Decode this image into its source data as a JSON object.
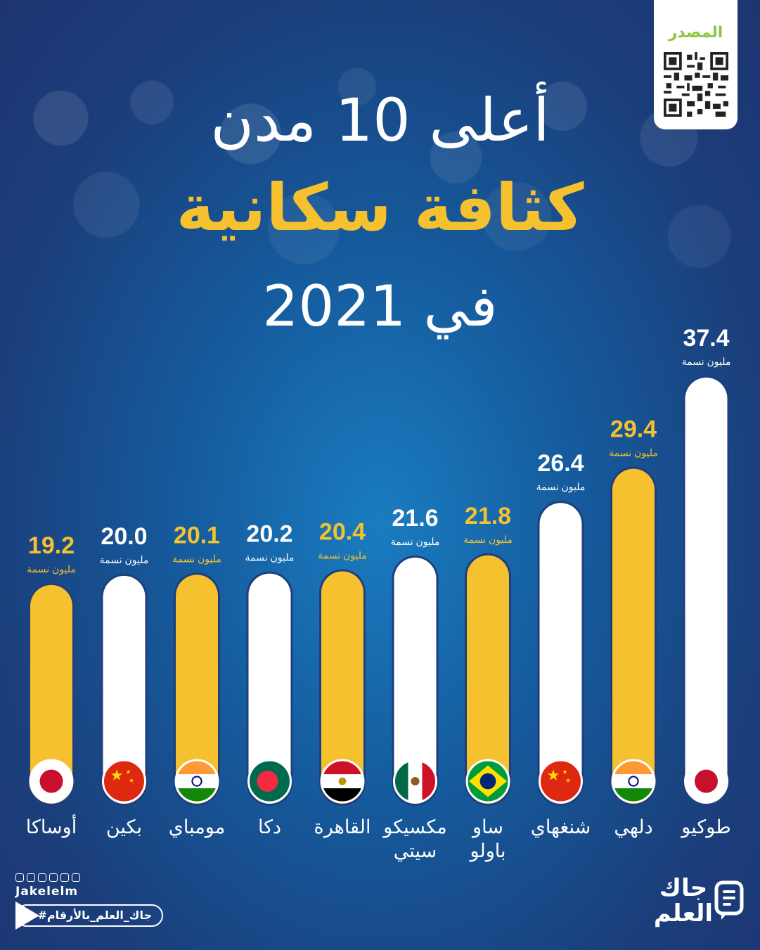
{
  "source": {
    "label": "المصدر"
  },
  "title": {
    "line1": "أعلى 10 مدن",
    "line2": "كثافة سكانية",
    "line3": "في 2021"
  },
  "unit_label": "مليون نسمة",
  "colors": {
    "yellow": "#f5c12e",
    "white": "#ffffff",
    "title_accent": "#f5c12e",
    "source_green": "#8dc63f"
  },
  "chart_data": {
    "type": "bar",
    "categories": [
      "أوساكا",
      "بكين",
      "مومباي",
      "دكا",
      "القاهرة",
      "مكسيكو سيتي",
      "ساو باولو",
      "شنغهاي",
      "دلهي",
      "طوكيو"
    ],
    "label_lines": [
      [
        "أوساكا"
      ],
      [
        "بكين"
      ],
      [
        "مومباي"
      ],
      [
        "دكا"
      ],
      [
        "القاهرة"
      ],
      [
        "مكسيكو",
        "سيتي"
      ],
      [
        "ساو",
        "باولو"
      ],
      [
        "شنغهاي"
      ],
      [
        "دلهي"
      ],
      [
        "طوكيو"
      ]
    ],
    "values": [
      19.2,
      20.0,
      20.1,
      20.2,
      20.4,
      21.6,
      21.8,
      26.4,
      29.4,
      37.4
    ],
    "value_labels": [
      "19.2",
      "20.0",
      "20.1",
      "20.2",
      "20.4",
      "21.6",
      "21.8",
      "26.4",
      "29.4",
      "37.4"
    ],
    "bar_colors": [
      "yellow",
      "white",
      "yellow",
      "white",
      "yellow",
      "white",
      "yellow",
      "white",
      "yellow",
      "white"
    ],
    "flags": [
      "japan-flag",
      "china-flag",
      "india-flag",
      "bangladesh-flag",
      "egypt-flag",
      "mexico-flag",
      "brazil-flag",
      "china-flag",
      "india-flag",
      "japan-flag"
    ],
    "unit": "مليون نسمة",
    "ylim": [
      0,
      37.4
    ]
  },
  "footer": {
    "handle": "Jakelelm",
    "hashtag": "#جاك_العلم_بالأرقام",
    "brand_line1": "جاك",
    "brand_line2": "العلم"
  }
}
